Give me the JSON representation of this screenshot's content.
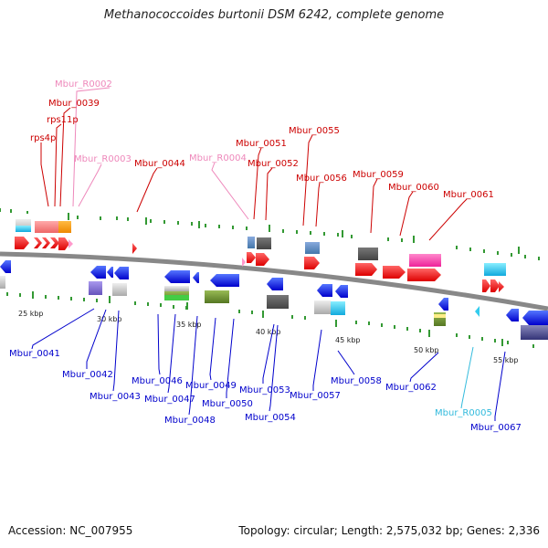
{
  "title": "Methanococcoides burtonii DSM 6242, complete genome",
  "footer": {
    "accession": "Accession: NC_007955",
    "topology": "Topology: circular; Length: 2,575,032 bp; Genes: 2,336"
  },
  "colors": {
    "forward_label": "#cc0000",
    "reverse_label": "#0000cc",
    "rna_forward_label": "#ee88bb",
    "rna_reverse_label": "#33bbdd",
    "backbone": "#777777",
    "tick": "#339933"
  },
  "ticks": [
    "25 kbp",
    "30 kbp",
    "35 kbp",
    "40 kbp",
    "45 kbp",
    "50 kbp",
    "55 kbp"
  ],
  "forward_labels": [
    "Mbur_R0002",
    "Mbur_0039",
    "rps11p",
    "rps4p",
    "Mbur_R0003",
    "Mbur_0044",
    "Mbur_R0004",
    "Mbur_0051",
    "Mbur_0052",
    "Mbur_0055",
    "Mbur_0056",
    "Mbur_0059",
    "Mbur_0060",
    "Mbur_0061"
  ],
  "reverse_labels": [
    "Mbur_0041",
    "Mbur_0042",
    "Mbur_0043",
    "Mbur_0046",
    "Mbur_0047",
    "Mbur_0048",
    "Mbur_0049",
    "Mbur_0050",
    "Mbur_0053",
    "Mbur_0054",
    "Mbur_0057",
    "Mbur_0058",
    "Mbur_0062",
    "Mbur_R0005",
    "Mbur_0067"
  ]
}
